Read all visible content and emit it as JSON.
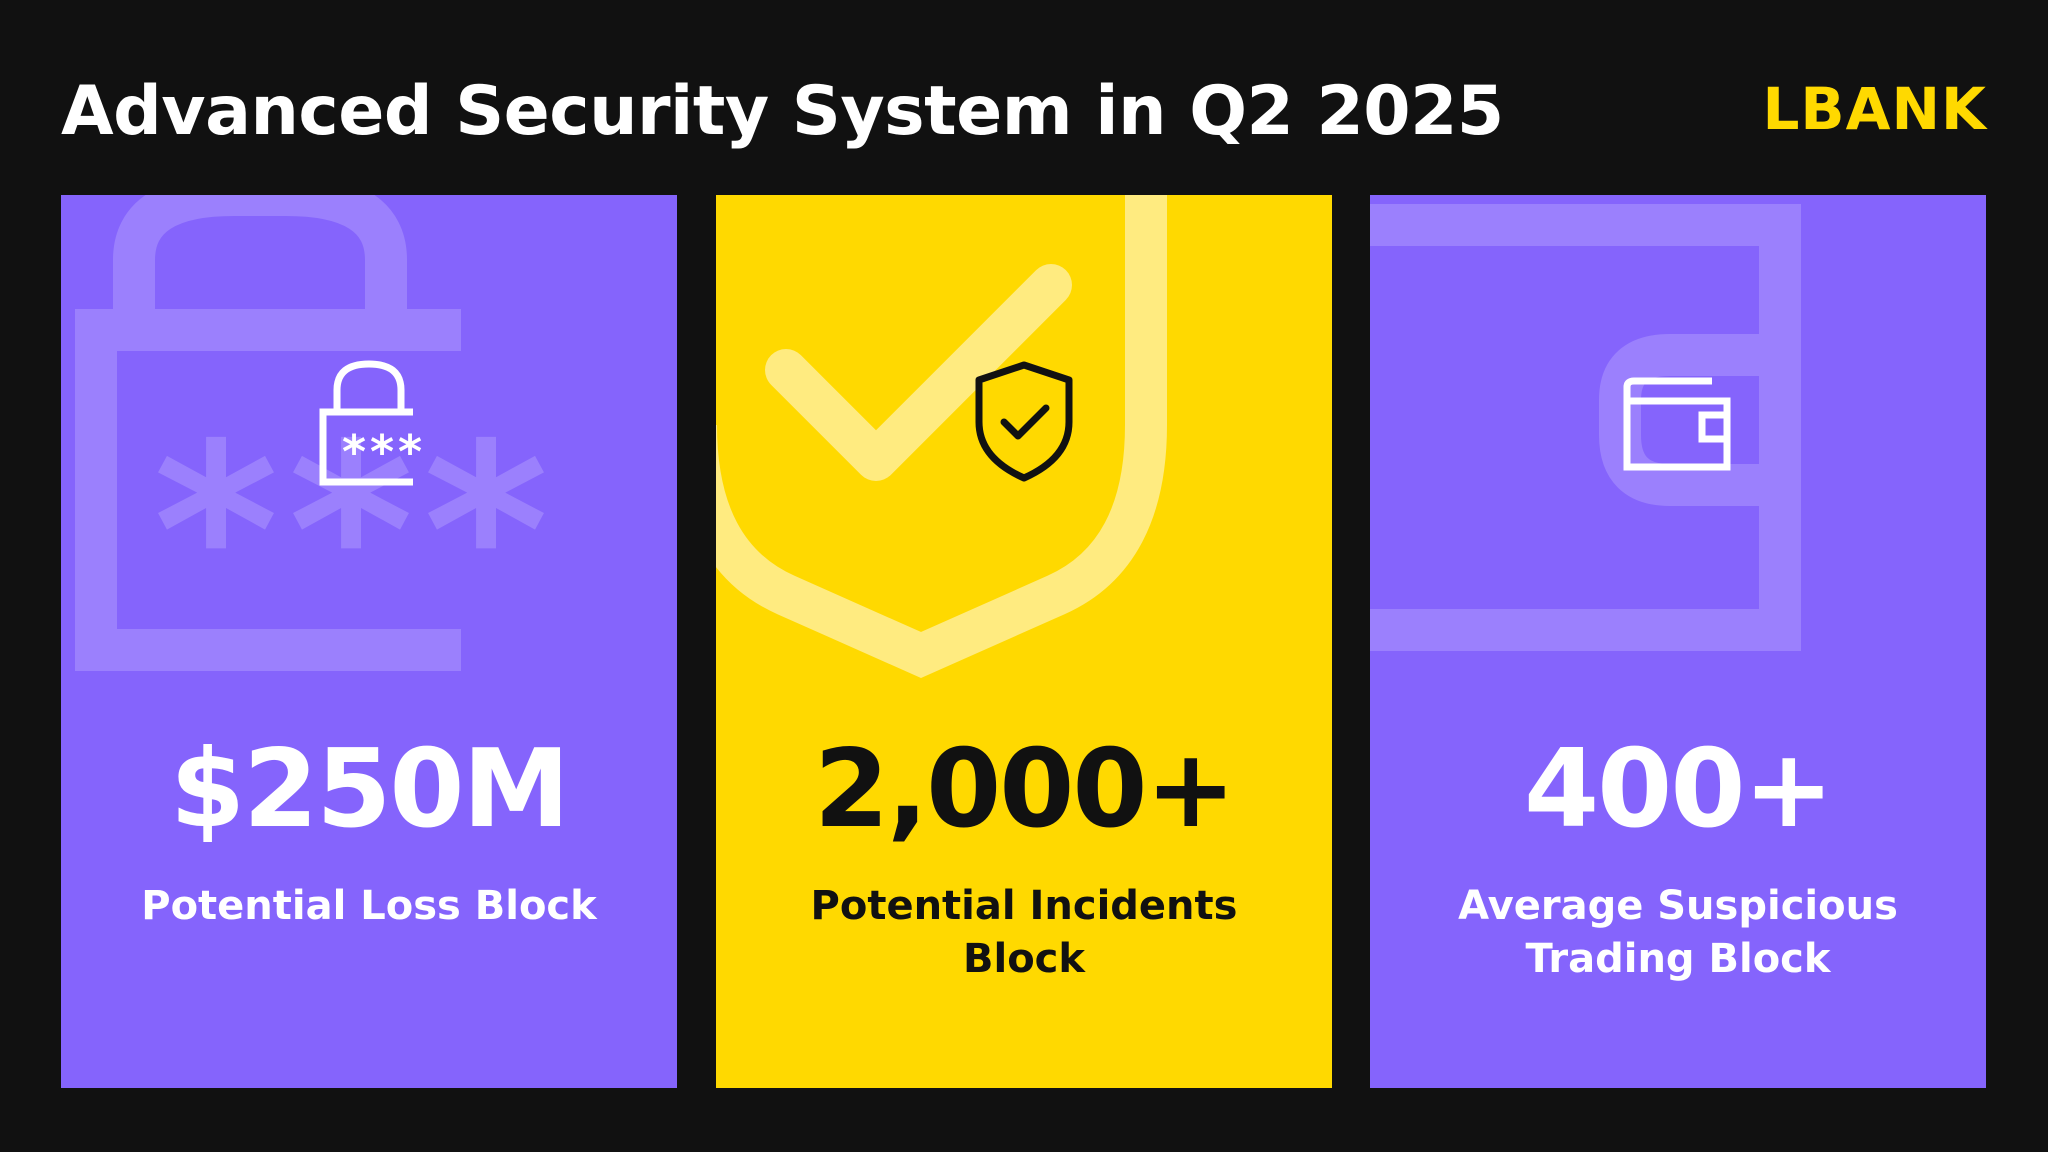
{
  "header": {
    "title": "Advanced Security System in Q2 2025",
    "logo_text": "LBANK"
  },
  "cards": [
    {
      "value": "$250M",
      "label": "Potential Loss Block",
      "icon": "padlock-password-icon",
      "background_color": "#8564fc"
    },
    {
      "value": "2,000+",
      "label": "Potential Incidents Block",
      "icon": "shield-check-icon",
      "background_color": "#ffd900"
    },
    {
      "value": "400+",
      "label": "Average Suspicious Trading Block",
      "icon": "wallet-icon",
      "background_color": "#8564fc"
    }
  ],
  "colors": {
    "background": "#111111",
    "purple": "#8564fc",
    "purple_light": "#9b80fd",
    "yellow": "#ffd900",
    "yellow_light": "#ffeb80"
  }
}
